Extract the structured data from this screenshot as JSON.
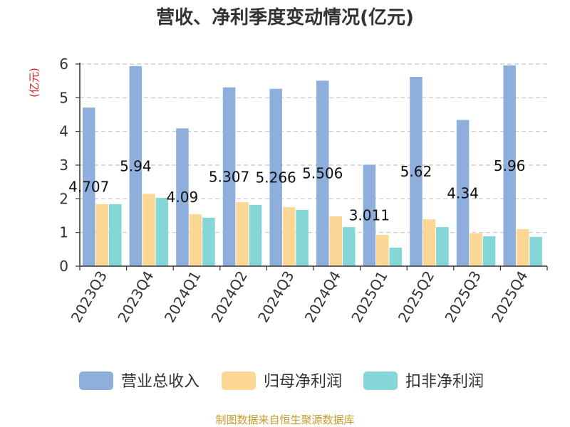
{
  "chart_data": {
    "type": "bar",
    "title": "营收、净利季度变动情况(亿元)",
    "ylabel": "(亿元)",
    "xlabel": "",
    "ylim": [
      0,
      6
    ],
    "yticks": [
      0,
      1,
      2,
      3,
      4,
      5,
      6
    ],
    "grid": true,
    "legend": "bottom",
    "categories": [
      "2023Q3",
      "2023Q4",
      "2024Q1",
      "2024Q2",
      "2024Q3",
      "2024Q4",
      "2025Q1",
      "2025Q2",
      "2025Q3",
      "2025Q4"
    ],
    "series": [
      {
        "name": "营业总收入",
        "color": "#8eaedb",
        "values": [
          4.707,
          5.94,
          4.09,
          5.307,
          5.266,
          5.506,
          3.011,
          5.62,
          4.34,
          5.96
        ],
        "data_labels": [
          "4.707",
          "5.94",
          "4.09",
          "5.307",
          "5.266",
          "5.506",
          "3.011",
          "5.62",
          "4.34",
          "5.96"
        ]
      },
      {
        "name": "归母净利润",
        "color": "#fdd795",
        "values": [
          1.84,
          2.15,
          1.54,
          1.9,
          1.75,
          1.48,
          0.93,
          1.39,
          0.97,
          1.1
        ]
      },
      {
        "name": "扣非净利润",
        "color": "#85d6d6",
        "values": [
          1.84,
          2.03,
          1.44,
          1.82,
          1.67,
          1.16,
          0.55,
          1.16,
          0.89,
          0.87
        ]
      }
    ]
  },
  "source": "制图数据来自恒生聚源数据库",
  "colors": {
    "source_text": "#c79b2e",
    "unit_text": "#e0201f",
    "grid": "#c8c8c8",
    "axis": "#333333"
  }
}
